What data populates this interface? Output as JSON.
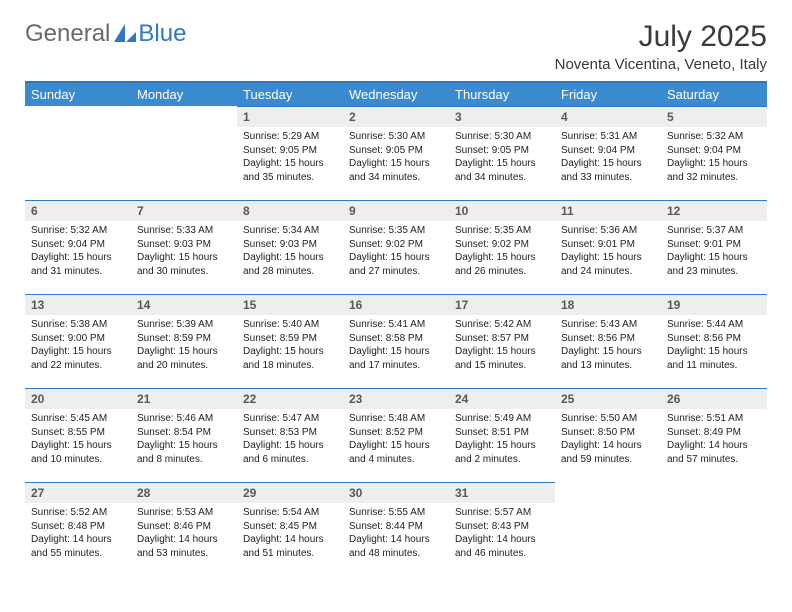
{
  "brand": {
    "part1": "General",
    "part2": "Blue"
  },
  "title": "July 2025",
  "location": "Noventa Vicentina, Veneto, Italy",
  "colors": {
    "header_bg": "#3a8ad0",
    "accent": "#2f78c4",
    "daynum_bg": "#eceeef",
    "text": "#222222"
  },
  "dow": [
    "Sunday",
    "Monday",
    "Tuesday",
    "Wednesday",
    "Thursday",
    "Friday",
    "Saturday"
  ],
  "weeks": [
    {
      "nums": [
        "",
        "",
        "1",
        "2",
        "3",
        "4",
        "5"
      ],
      "cells": [
        {
          "sunrise": "",
          "sunset": "",
          "daylight": ""
        },
        {
          "sunrise": "",
          "sunset": "",
          "daylight": ""
        },
        {
          "sunrise": "Sunrise: 5:29 AM",
          "sunset": "Sunset: 9:05 PM",
          "daylight": "Daylight: 15 hours and 35 minutes."
        },
        {
          "sunrise": "Sunrise: 5:30 AM",
          "sunset": "Sunset: 9:05 PM",
          "daylight": "Daylight: 15 hours and 34 minutes."
        },
        {
          "sunrise": "Sunrise: 5:30 AM",
          "sunset": "Sunset: 9:05 PM",
          "daylight": "Daylight: 15 hours and 34 minutes."
        },
        {
          "sunrise": "Sunrise: 5:31 AM",
          "sunset": "Sunset: 9:04 PM",
          "daylight": "Daylight: 15 hours and 33 minutes."
        },
        {
          "sunrise": "Sunrise: 5:32 AM",
          "sunset": "Sunset: 9:04 PM",
          "daylight": "Daylight: 15 hours and 32 minutes."
        }
      ]
    },
    {
      "nums": [
        "6",
        "7",
        "8",
        "9",
        "10",
        "11",
        "12"
      ],
      "cells": [
        {
          "sunrise": "Sunrise: 5:32 AM",
          "sunset": "Sunset: 9:04 PM",
          "daylight": "Daylight: 15 hours and 31 minutes."
        },
        {
          "sunrise": "Sunrise: 5:33 AM",
          "sunset": "Sunset: 9:03 PM",
          "daylight": "Daylight: 15 hours and 30 minutes."
        },
        {
          "sunrise": "Sunrise: 5:34 AM",
          "sunset": "Sunset: 9:03 PM",
          "daylight": "Daylight: 15 hours and 28 minutes."
        },
        {
          "sunrise": "Sunrise: 5:35 AM",
          "sunset": "Sunset: 9:02 PM",
          "daylight": "Daylight: 15 hours and 27 minutes."
        },
        {
          "sunrise": "Sunrise: 5:35 AM",
          "sunset": "Sunset: 9:02 PM",
          "daylight": "Daylight: 15 hours and 26 minutes."
        },
        {
          "sunrise": "Sunrise: 5:36 AM",
          "sunset": "Sunset: 9:01 PM",
          "daylight": "Daylight: 15 hours and 24 minutes."
        },
        {
          "sunrise": "Sunrise: 5:37 AM",
          "sunset": "Sunset: 9:01 PM",
          "daylight": "Daylight: 15 hours and 23 minutes."
        }
      ]
    },
    {
      "nums": [
        "13",
        "14",
        "15",
        "16",
        "17",
        "18",
        "19"
      ],
      "cells": [
        {
          "sunrise": "Sunrise: 5:38 AM",
          "sunset": "Sunset: 9:00 PM",
          "daylight": "Daylight: 15 hours and 22 minutes."
        },
        {
          "sunrise": "Sunrise: 5:39 AM",
          "sunset": "Sunset: 8:59 PM",
          "daylight": "Daylight: 15 hours and 20 minutes."
        },
        {
          "sunrise": "Sunrise: 5:40 AM",
          "sunset": "Sunset: 8:59 PM",
          "daylight": "Daylight: 15 hours and 18 minutes."
        },
        {
          "sunrise": "Sunrise: 5:41 AM",
          "sunset": "Sunset: 8:58 PM",
          "daylight": "Daylight: 15 hours and 17 minutes."
        },
        {
          "sunrise": "Sunrise: 5:42 AM",
          "sunset": "Sunset: 8:57 PM",
          "daylight": "Daylight: 15 hours and 15 minutes."
        },
        {
          "sunrise": "Sunrise: 5:43 AM",
          "sunset": "Sunset: 8:56 PM",
          "daylight": "Daylight: 15 hours and 13 minutes."
        },
        {
          "sunrise": "Sunrise: 5:44 AM",
          "sunset": "Sunset: 8:56 PM",
          "daylight": "Daylight: 15 hours and 11 minutes."
        }
      ]
    },
    {
      "nums": [
        "20",
        "21",
        "22",
        "23",
        "24",
        "25",
        "26"
      ],
      "cells": [
        {
          "sunrise": "Sunrise: 5:45 AM",
          "sunset": "Sunset: 8:55 PM",
          "daylight": "Daylight: 15 hours and 10 minutes."
        },
        {
          "sunrise": "Sunrise: 5:46 AM",
          "sunset": "Sunset: 8:54 PM",
          "daylight": "Daylight: 15 hours and 8 minutes."
        },
        {
          "sunrise": "Sunrise: 5:47 AM",
          "sunset": "Sunset: 8:53 PM",
          "daylight": "Daylight: 15 hours and 6 minutes."
        },
        {
          "sunrise": "Sunrise: 5:48 AM",
          "sunset": "Sunset: 8:52 PM",
          "daylight": "Daylight: 15 hours and 4 minutes."
        },
        {
          "sunrise": "Sunrise: 5:49 AM",
          "sunset": "Sunset: 8:51 PM",
          "daylight": "Daylight: 15 hours and 2 minutes."
        },
        {
          "sunrise": "Sunrise: 5:50 AM",
          "sunset": "Sunset: 8:50 PM",
          "daylight": "Daylight: 14 hours and 59 minutes."
        },
        {
          "sunrise": "Sunrise: 5:51 AM",
          "sunset": "Sunset: 8:49 PM",
          "daylight": "Daylight: 14 hours and 57 minutes."
        }
      ]
    },
    {
      "nums": [
        "27",
        "28",
        "29",
        "30",
        "31",
        "",
        ""
      ],
      "cells": [
        {
          "sunrise": "Sunrise: 5:52 AM",
          "sunset": "Sunset: 8:48 PM",
          "daylight": "Daylight: 14 hours and 55 minutes."
        },
        {
          "sunrise": "Sunrise: 5:53 AM",
          "sunset": "Sunset: 8:46 PM",
          "daylight": "Daylight: 14 hours and 53 minutes."
        },
        {
          "sunrise": "Sunrise: 5:54 AM",
          "sunset": "Sunset: 8:45 PM",
          "daylight": "Daylight: 14 hours and 51 minutes."
        },
        {
          "sunrise": "Sunrise: 5:55 AM",
          "sunset": "Sunset: 8:44 PM",
          "daylight": "Daylight: 14 hours and 48 minutes."
        },
        {
          "sunrise": "Sunrise: 5:57 AM",
          "sunset": "Sunset: 8:43 PM",
          "daylight": "Daylight: 14 hours and 46 minutes."
        },
        {
          "sunrise": "",
          "sunset": "",
          "daylight": ""
        },
        {
          "sunrise": "",
          "sunset": "",
          "daylight": ""
        }
      ]
    }
  ]
}
